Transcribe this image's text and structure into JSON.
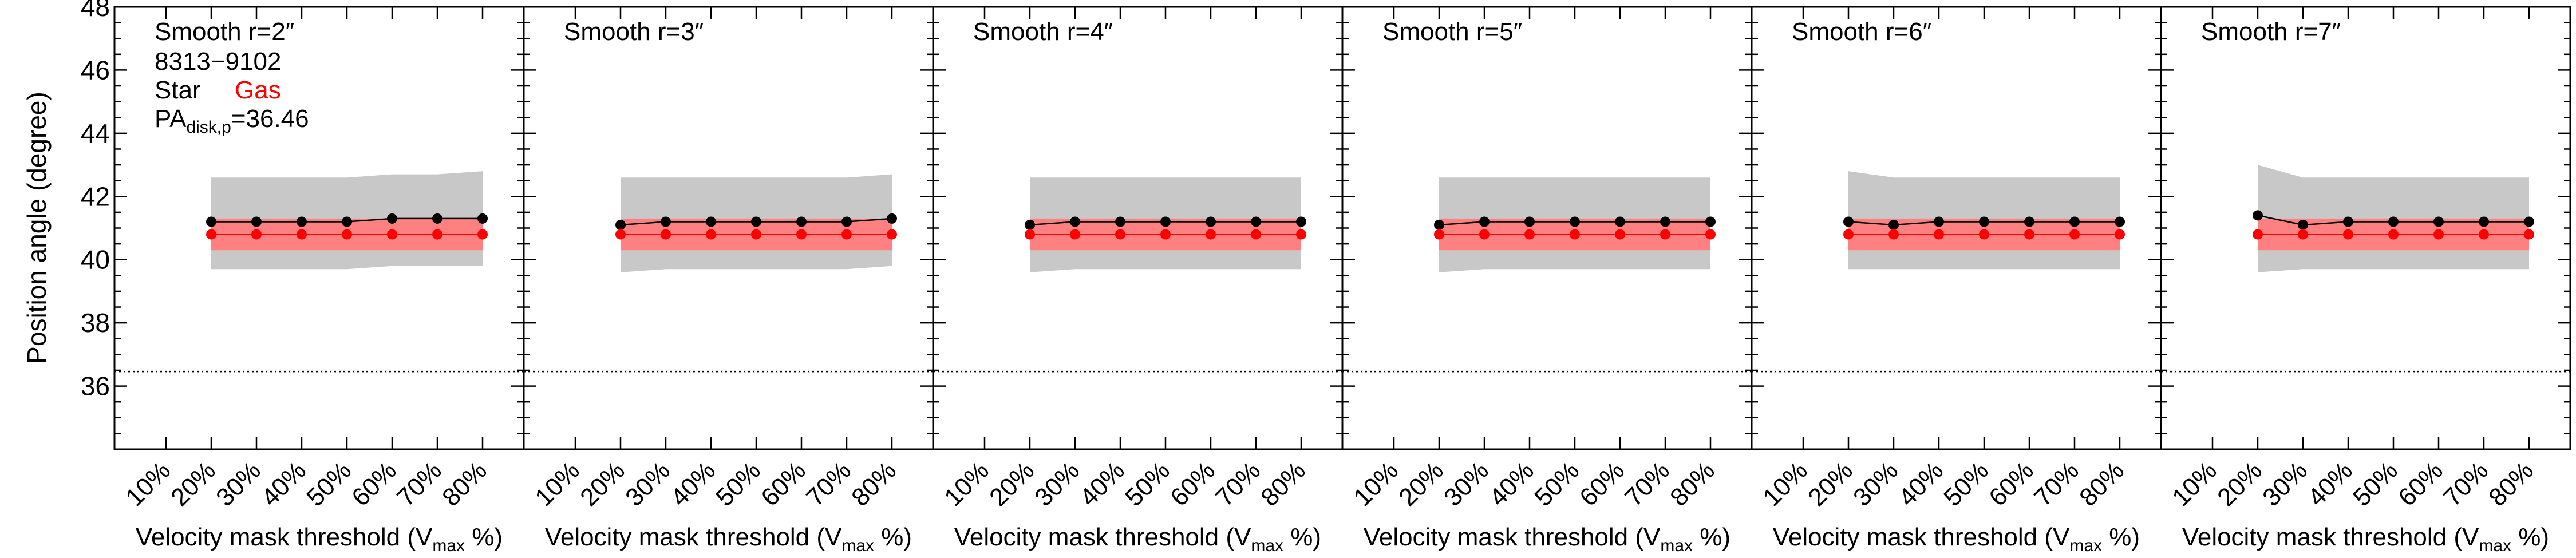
{
  "figure": {
    "ylabel": "Position angle (degree)",
    "xlabel_main": "Velocity mask threshold (V",
    "xlabel_sub": "max",
    "xlabel_tail": " %)",
    "info_lines": [
      "8313−9102"
    ],
    "legend_star": "Star",
    "legend_gas": "Gas",
    "pa_label_main": "PA",
    "pa_label_sub": "disk,p",
    "pa_label_value": "=36.46",
    "colors": {
      "star": "#000000",
      "gas": "#ff0000",
      "gas_band": "#ff8080",
      "star_band": "#c8c8c8",
      "axes": "#000000"
    }
  },
  "chart_data": [
    {
      "type": "line",
      "title": "Smooth r=2″",
      "x": [
        "10%",
        "20%",
        "30%",
        "40%",
        "50%",
        "60%",
        "70%",
        "80%"
      ],
      "ylim": [
        34,
        48
      ],
      "yticks": [
        36,
        38,
        40,
        42,
        44,
        46,
        48
      ],
      "reference_line": 36.46,
      "series": [
        {
          "name": "Star",
          "values": [
            null,
            41.2,
            41.2,
            41.2,
            41.2,
            41.3,
            41.3,
            41.3
          ],
          "band_low": [
            null,
            39.7,
            39.7,
            39.7,
            39.7,
            39.8,
            39.8,
            39.8
          ],
          "band_high": [
            null,
            42.6,
            42.6,
            42.6,
            42.6,
            42.7,
            42.7,
            42.8
          ]
        },
        {
          "name": "Gas",
          "values": [
            null,
            40.8,
            40.8,
            40.8,
            40.8,
            40.8,
            40.8,
            40.8
          ],
          "band_low": [
            null,
            40.3,
            40.3,
            40.3,
            40.3,
            40.3,
            40.3,
            40.3
          ],
          "band_high": [
            null,
            41.3,
            41.3,
            41.3,
            41.3,
            41.3,
            41.3,
            41.3
          ]
        }
      ]
    },
    {
      "type": "line",
      "title": "Smooth r=3″",
      "x": [
        "10%",
        "20%",
        "30%",
        "40%",
        "50%",
        "60%",
        "70%",
        "80%"
      ],
      "ylim": [
        34,
        48
      ],
      "yticks": [
        36,
        38,
        40,
        42,
        44,
        46,
        48
      ],
      "reference_line": 36.46,
      "series": [
        {
          "name": "Star",
          "values": [
            null,
            41.1,
            41.2,
            41.2,
            41.2,
            41.2,
            41.2,
            41.3
          ],
          "band_low": [
            null,
            39.6,
            39.7,
            39.7,
            39.7,
            39.7,
            39.7,
            39.8
          ],
          "band_high": [
            null,
            42.6,
            42.6,
            42.6,
            42.6,
            42.6,
            42.6,
            42.7
          ]
        },
        {
          "name": "Gas",
          "values": [
            null,
            40.8,
            40.8,
            40.8,
            40.8,
            40.8,
            40.8,
            40.8
          ],
          "band_low": [
            null,
            40.3,
            40.3,
            40.3,
            40.3,
            40.3,
            40.3,
            40.3
          ],
          "band_high": [
            null,
            41.3,
            41.3,
            41.3,
            41.3,
            41.3,
            41.3,
            41.3
          ]
        }
      ]
    },
    {
      "type": "line",
      "title": "Smooth r=4″",
      "x": [
        "10%",
        "20%",
        "30%",
        "40%",
        "50%",
        "60%",
        "70%",
        "80%"
      ],
      "ylim": [
        34,
        48
      ],
      "yticks": [
        36,
        38,
        40,
        42,
        44,
        46,
        48
      ],
      "reference_line": 36.46,
      "series": [
        {
          "name": "Star",
          "values": [
            null,
            41.1,
            41.2,
            41.2,
            41.2,
            41.2,
            41.2,
            41.2
          ],
          "band_low": [
            null,
            39.6,
            39.7,
            39.7,
            39.7,
            39.7,
            39.7,
            39.7
          ],
          "band_high": [
            null,
            42.6,
            42.6,
            42.6,
            42.6,
            42.6,
            42.6,
            42.6
          ]
        },
        {
          "name": "Gas",
          "values": [
            null,
            40.8,
            40.8,
            40.8,
            40.8,
            40.8,
            40.8,
            40.8
          ],
          "band_low": [
            null,
            40.3,
            40.3,
            40.3,
            40.3,
            40.3,
            40.3,
            40.3
          ],
          "band_high": [
            null,
            41.3,
            41.3,
            41.3,
            41.3,
            41.3,
            41.3,
            41.3
          ]
        }
      ]
    },
    {
      "type": "line",
      "title": "Smooth r=5″",
      "x": [
        "10%",
        "20%",
        "30%",
        "40%",
        "50%",
        "60%",
        "70%",
        "80%"
      ],
      "ylim": [
        34,
        48
      ],
      "yticks": [
        36,
        38,
        40,
        42,
        44,
        46,
        48
      ],
      "reference_line": 36.46,
      "series": [
        {
          "name": "Star",
          "values": [
            null,
            41.1,
            41.2,
            41.2,
            41.2,
            41.2,
            41.2,
            41.2
          ],
          "band_low": [
            null,
            39.6,
            39.7,
            39.7,
            39.7,
            39.7,
            39.7,
            39.7
          ],
          "band_high": [
            null,
            42.6,
            42.6,
            42.6,
            42.6,
            42.6,
            42.6,
            42.6
          ]
        },
        {
          "name": "Gas",
          "values": [
            null,
            40.8,
            40.8,
            40.8,
            40.8,
            40.8,
            40.8,
            40.8
          ],
          "band_low": [
            null,
            40.3,
            40.3,
            40.3,
            40.3,
            40.3,
            40.3,
            40.3
          ],
          "band_high": [
            null,
            41.3,
            41.3,
            41.3,
            41.3,
            41.3,
            41.3,
            41.3
          ]
        }
      ]
    },
    {
      "type": "line",
      "title": "Smooth r=6″",
      "x": [
        "10%",
        "20%",
        "30%",
        "40%",
        "50%",
        "60%",
        "70%",
        "80%"
      ],
      "ylim": [
        34,
        48
      ],
      "yticks": [
        36,
        38,
        40,
        42,
        44,
        46,
        48
      ],
      "reference_line": 36.46,
      "series": [
        {
          "name": "Star",
          "values": [
            null,
            41.2,
            41.1,
            41.2,
            41.2,
            41.2,
            41.2,
            41.2
          ],
          "band_low": [
            null,
            39.7,
            39.7,
            39.7,
            39.7,
            39.7,
            39.7,
            39.7
          ],
          "band_high": [
            null,
            42.8,
            42.6,
            42.6,
            42.6,
            42.6,
            42.6,
            42.6
          ]
        },
        {
          "name": "Gas",
          "values": [
            null,
            40.8,
            40.8,
            40.8,
            40.8,
            40.8,
            40.8,
            40.8
          ],
          "band_low": [
            null,
            40.3,
            40.3,
            40.3,
            40.3,
            40.3,
            40.3,
            40.3
          ],
          "band_high": [
            null,
            41.3,
            41.3,
            41.3,
            41.3,
            41.3,
            41.3,
            41.3
          ]
        }
      ]
    },
    {
      "type": "line",
      "title": "Smooth r=7″",
      "x": [
        "10%",
        "20%",
        "30%",
        "40%",
        "50%",
        "60%",
        "70%",
        "80%"
      ],
      "ylim": [
        34,
        48
      ],
      "yticks": [
        36,
        38,
        40,
        42,
        44,
        46,
        48
      ],
      "reference_line": 36.46,
      "series": [
        {
          "name": "Star",
          "values": [
            null,
            41.4,
            41.1,
            41.2,
            41.2,
            41.2,
            41.2,
            41.2
          ],
          "band_low": [
            null,
            39.6,
            39.7,
            39.7,
            39.7,
            39.7,
            39.7,
            39.7
          ],
          "band_high": [
            null,
            43.0,
            42.6,
            42.6,
            42.6,
            42.6,
            42.6,
            42.6
          ]
        },
        {
          "name": "Gas",
          "values": [
            null,
            40.8,
            40.8,
            40.8,
            40.8,
            40.8,
            40.8,
            40.8
          ],
          "band_low": [
            null,
            40.3,
            40.3,
            40.3,
            40.3,
            40.3,
            40.3,
            40.3
          ],
          "band_high": [
            null,
            41.3,
            41.3,
            41.3,
            41.3,
            41.3,
            41.3,
            41.3
          ]
        }
      ]
    }
  ]
}
